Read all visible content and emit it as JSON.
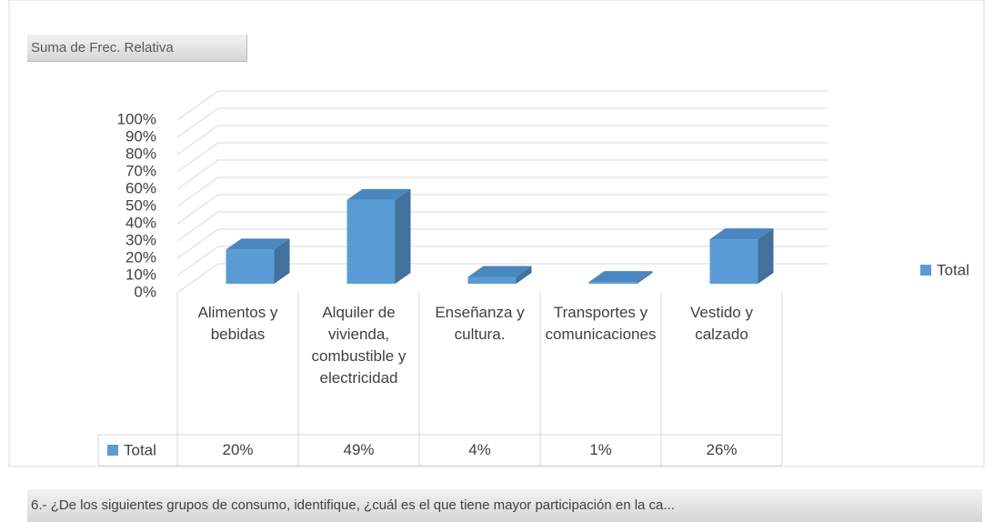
{
  "chart_data": {
    "type": "bar",
    "value_field": "Suma de Frec. Relativa",
    "categories": [
      "Alimentos y bebidas",
      "Alquiler de vivienda, combustible y electricidad",
      "Enseñanza y cultura.",
      "Transportes y comunicaciones",
      "Vestido y calzado"
    ],
    "series": [
      {
        "name": "Total",
        "color": "#5b9bd5",
        "values": [
          20,
          49,
          4,
          1,
          26
        ],
        "value_labels": [
          "20%",
          "49%",
          "4%",
          "1%",
          "26%"
        ]
      }
    ],
    "ylim": [
      0,
      100
    ],
    "yticks": [
      {
        "value": 0,
        "label": "0%"
      },
      {
        "value": 10,
        "label": "10%"
      },
      {
        "value": 20,
        "label": "20%"
      },
      {
        "value": 30,
        "label": "30%"
      },
      {
        "value": 40,
        "label": "40%"
      },
      {
        "value": 50,
        "label": "50%"
      },
      {
        "value": 60,
        "label": "60%"
      },
      {
        "value": 70,
        "label": "70%"
      },
      {
        "value": 80,
        "label": "80%"
      },
      {
        "value": 90,
        "label": "90%"
      },
      {
        "value": 100,
        "label": "100%"
      }
    ],
    "grid": true,
    "legend": "right",
    "next_field": "6.- ¿De los siguientes grupos de consumo, identifique, ¿cuál es el que tiene mayor participación en la ca..."
  }
}
